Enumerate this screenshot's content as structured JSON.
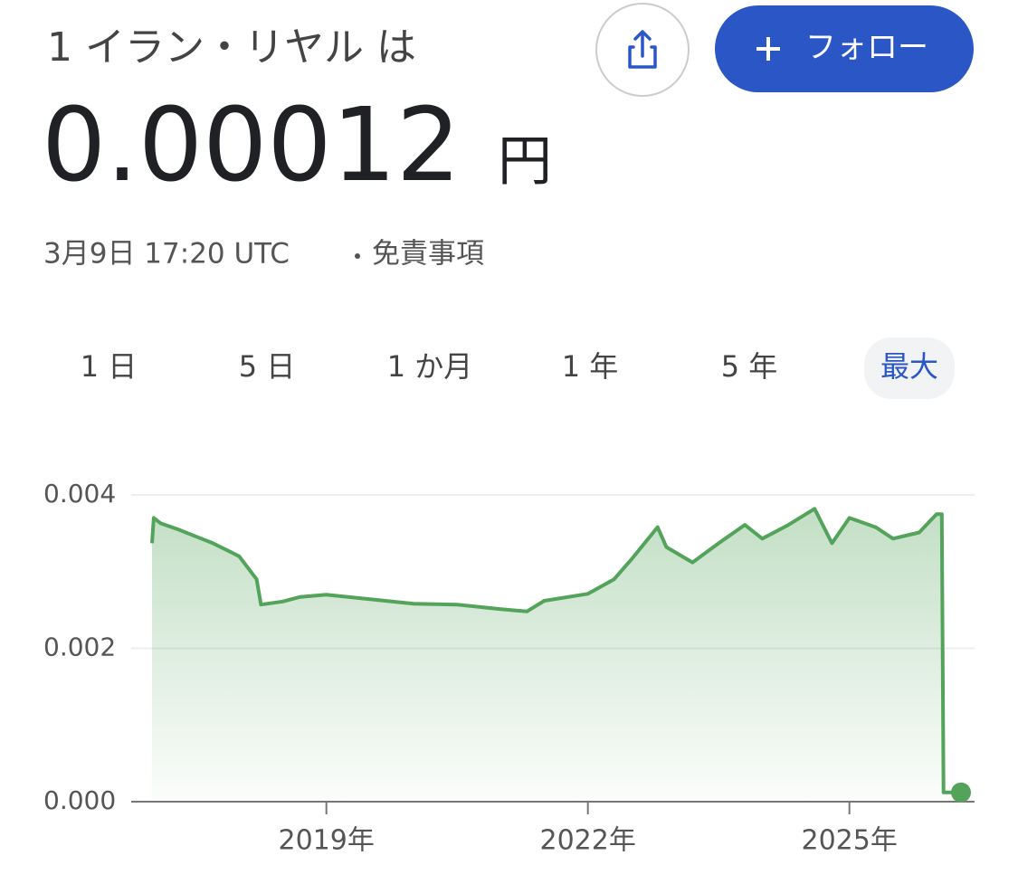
{
  "header": {
    "title": "1 イラン・リヤル は",
    "price": "0.00012",
    "currency": "円",
    "timestamp": "3月9日 17:20 UTC",
    "disclaimer": "免責事項",
    "follow": "フォロー"
  },
  "ranges": [
    "1 日",
    "5 日",
    "1 か月",
    "1 年",
    "5 年",
    "最大"
  ],
  "active_range": 5,
  "chart_data": {
    "type": "line",
    "x": [
      2017.0,
      2017.02,
      2017.1,
      2017.3,
      2017.5,
      2017.7,
      2018.0,
      2018.2,
      2018.25,
      2018.5,
      2018.7,
      2019.0,
      2019.5,
      2020.0,
      2020.5,
      2021.0,
      2021.3,
      2021.5,
      2022.0,
      2022.3,
      2022.5,
      2022.8,
      2022.9,
      2023.2,
      2023.5,
      2023.8,
      2024.0,
      2024.3,
      2024.6,
      2024.8,
      2025.0,
      2025.3,
      2025.5,
      2025.8,
      2026.0,
      2026.06,
      2026.08,
      2026.28
    ],
    "series": [
      {
        "name": "1 イラン・リヤル",
        "color": "#53a35a",
        "values": [
          0.00337,
          0.0037,
          0.00363,
          0.00355,
          0.00346,
          0.00337,
          0.0032,
          0.0029,
          0.00257,
          0.00261,
          0.00267,
          0.0027,
          0.00264,
          0.00258,
          0.00257,
          0.00251,
          0.00248,
          0.00262,
          0.00271,
          0.0029,
          0.00316,
          0.00358,
          0.00332,
          0.00312,
          0.00337,
          0.00361,
          0.00343,
          0.00361,
          0.00382,
          0.00337,
          0.0037,
          0.00358,
          0.00343,
          0.00351,
          0.00375,
          0.00375,
          0.00012,
          0.00012
        ]
      }
    ],
    "xlim": [
      2017.0,
      2026.28
    ],
    "xticks": [
      {
        "value": 2019,
        "label": "2019年"
      },
      {
        "value": 2022,
        "label": "2022年"
      },
      {
        "value": 2025,
        "label": "2025年"
      }
    ],
    "ylim": [
      0,
      0.004
    ],
    "yticks": [
      {
        "value": 0,
        "label": "0.000"
      },
      0.002,
      0.004
    ],
    "grid": true
  }
}
